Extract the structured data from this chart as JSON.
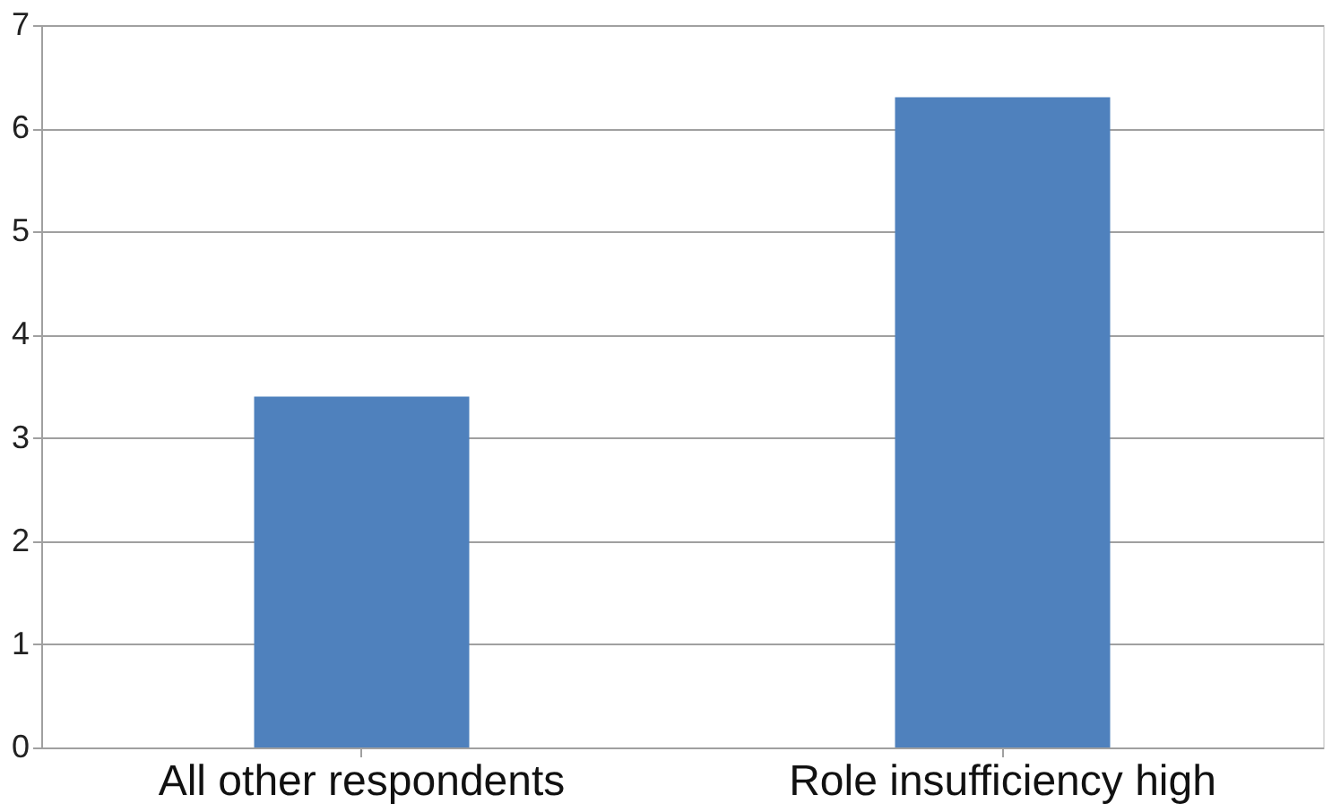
{
  "chart_data": {
    "type": "bar",
    "categories": [
      "All other respondents",
      "Role insufficiency high"
    ],
    "values": [
      3.4,
      6.3
    ],
    "color": "#4f81bd",
    "ylim": [
      0,
      7
    ],
    "yticks": [
      0,
      1,
      2,
      3,
      4,
      5,
      6,
      7
    ],
    "grid": "y"
  }
}
